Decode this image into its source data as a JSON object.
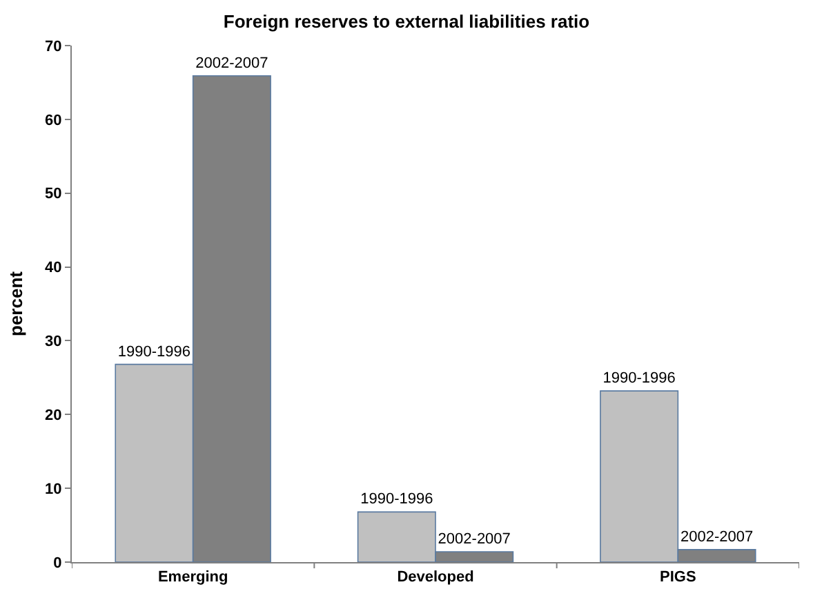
{
  "chart_data": {
    "type": "bar",
    "title": "Foreign reserves to external liabilities ratio",
    "ylabel": "percent",
    "categories": [
      "Emerging",
      "Developed",
      "PIGS"
    ],
    "series": [
      {
        "name": "1990-1996",
        "color": "#c0c0c0",
        "values": [
          26.8,
          6.8,
          23.2
        ]
      },
      {
        "name": "2002-2007",
        "color": "#808080",
        "values": [
          65.9,
          1.4,
          1.7
        ]
      }
    ],
    "ylim": [
      0,
      70
    ],
    "yticks": [
      0,
      10,
      20,
      30,
      40,
      50,
      60,
      70
    ],
    "grid": false,
    "legend": false
  }
}
